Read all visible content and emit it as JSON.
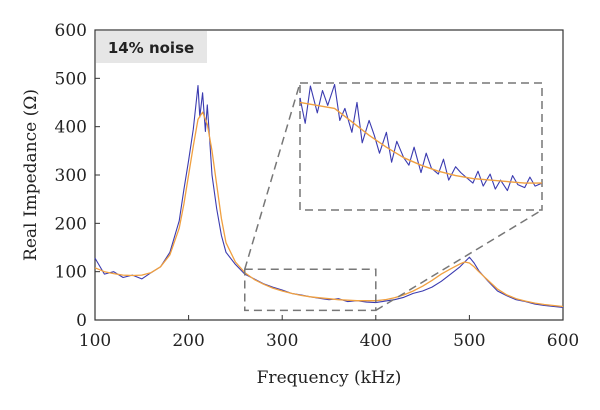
{
  "chart_data": {
    "type": "line",
    "title": "",
    "annotation": "14% noise",
    "xlabel": "Frequency (kHz)",
    "ylabel": "Real Impedance (Ω)",
    "xlim": [
      100,
      600
    ],
    "ylim": [
      0,
      600
    ],
    "x_ticks": [
      "100",
      "200",
      "300",
      "400",
      "500",
      "600"
    ],
    "y_ticks": [
      "0",
      "100",
      "200",
      "300",
      "400",
      "500",
      "600"
    ],
    "grid": false,
    "series": [
      {
        "color": "#3b3bb0",
        "style": "noisy",
        "x": [
          100,
          110,
          120,
          130,
          140,
          150,
          160,
          170,
          180,
          190,
          195,
          200,
          205,
          210,
          212,
          215,
          218,
          220,
          223,
          225,
          230,
          235,
          240,
          250,
          260,
          270,
          280,
          290,
          300,
          310,
          320,
          330,
          340,
          350,
          360,
          370,
          380,
          390,
          400,
          410,
          420,
          430,
          440,
          450,
          460,
          470,
          480,
          490,
          495,
          500,
          505,
          510,
          520,
          530,
          540,
          550,
          560,
          570,
          580,
          590,
          600
        ],
        "y": [
          128,
          95,
          100,
          88,
          93,
          85,
          98,
          110,
          140,
          205,
          270,
          330,
          395,
          485,
          420,
          470,
          390,
          445,
          360,
          300,
          230,
          175,
          140,
          115,
          95,
          85,
          75,
          68,
          62,
          55,
          52,
          48,
          45,
          42,
          44,
          38,
          40,
          37,
          36,
          39,
          42,
          47,
          55,
          60,
          68,
          80,
          95,
          110,
          120,
          130,
          118,
          102,
          80,
          60,
          50,
          42,
          38,
          33,
          30,
          28,
          26
        ]
      },
      {
        "color": "#f0a040",
        "style": "smooth",
        "x": [
          100,
          110,
          120,
          130,
          140,
          150,
          160,
          170,
          180,
          190,
          195,
          200,
          205,
          210,
          215,
          220,
          225,
          230,
          235,
          240,
          250,
          260,
          270,
          280,
          290,
          300,
          310,
          320,
          330,
          340,
          350,
          360,
          370,
          380,
          390,
          400,
          410,
          420,
          430,
          440,
          450,
          460,
          470,
          480,
          490,
          495,
          500,
          505,
          510,
          520,
          530,
          540,
          550,
          560,
          570,
          580,
          590,
          600
        ],
        "y": [
          108,
          100,
          96,
          93,
          92,
          93,
          98,
          110,
          135,
          190,
          240,
          300,
          360,
          415,
          430,
          405,
          350,
          280,
          210,
          160,
          120,
          98,
          84,
          74,
          66,
          60,
          55,
          51,
          48,
          46,
          44,
          42,
          41,
          40,
          40,
          40,
          42,
          46,
          52,
          60,
          70,
          82,
          95,
          106,
          116,
          120,
          118,
          110,
          100,
          82,
          64,
          52,
          44,
          39,
          35,
          32,
          30,
          28
        ]
      }
    ],
    "inset": {
      "source_x_range": [
        260,
        400
      ],
      "source_y_range": [
        20,
        105
      ],
      "series": [
        {
          "color": "#3b3bb0",
          "x": [
            260,
            263,
            266,
            270,
            273,
            276,
            280,
            283,
            286,
            290,
            293,
            296,
            300,
            303,
            306,
            310,
            313,
            316,
            320,
            323,
            326,
            330,
            333,
            336,
            340,
            343,
            346,
            350,
            353,
            356,
            360,
            363,
            366,
            370,
            373,
            376,
            380,
            383,
            386,
            390,
            393,
            396,
            400
          ],
          "y": [
            95,
            78,
            103,
            85,
            100,
            90,
            104,
            80,
            88,
            72,
            92,
            65,
            80,
            70,
            58,
            72,
            52,
            66,
            55,
            50,
            62,
            45,
            58,
            48,
            44,
            54,
            40,
            49,
            45,
            42,
            38,
            46,
            36,
            44,
            34,
            40,
            33,
            43,
            37,
            35,
            42,
            36,
            38
          ]
        },
        {
          "color": "#f0a040",
          "x": [
            260,
            270,
            280,
            290,
            300,
            310,
            320,
            330,
            340,
            350,
            360,
            370,
            380,
            390,
            400
          ],
          "y": [
            92,
            90,
            88,
            79,
            70,
            62,
            55,
            50,
            46,
            43,
            41,
            40,
            39,
            38,
            38
          ]
        }
      ]
    }
  }
}
